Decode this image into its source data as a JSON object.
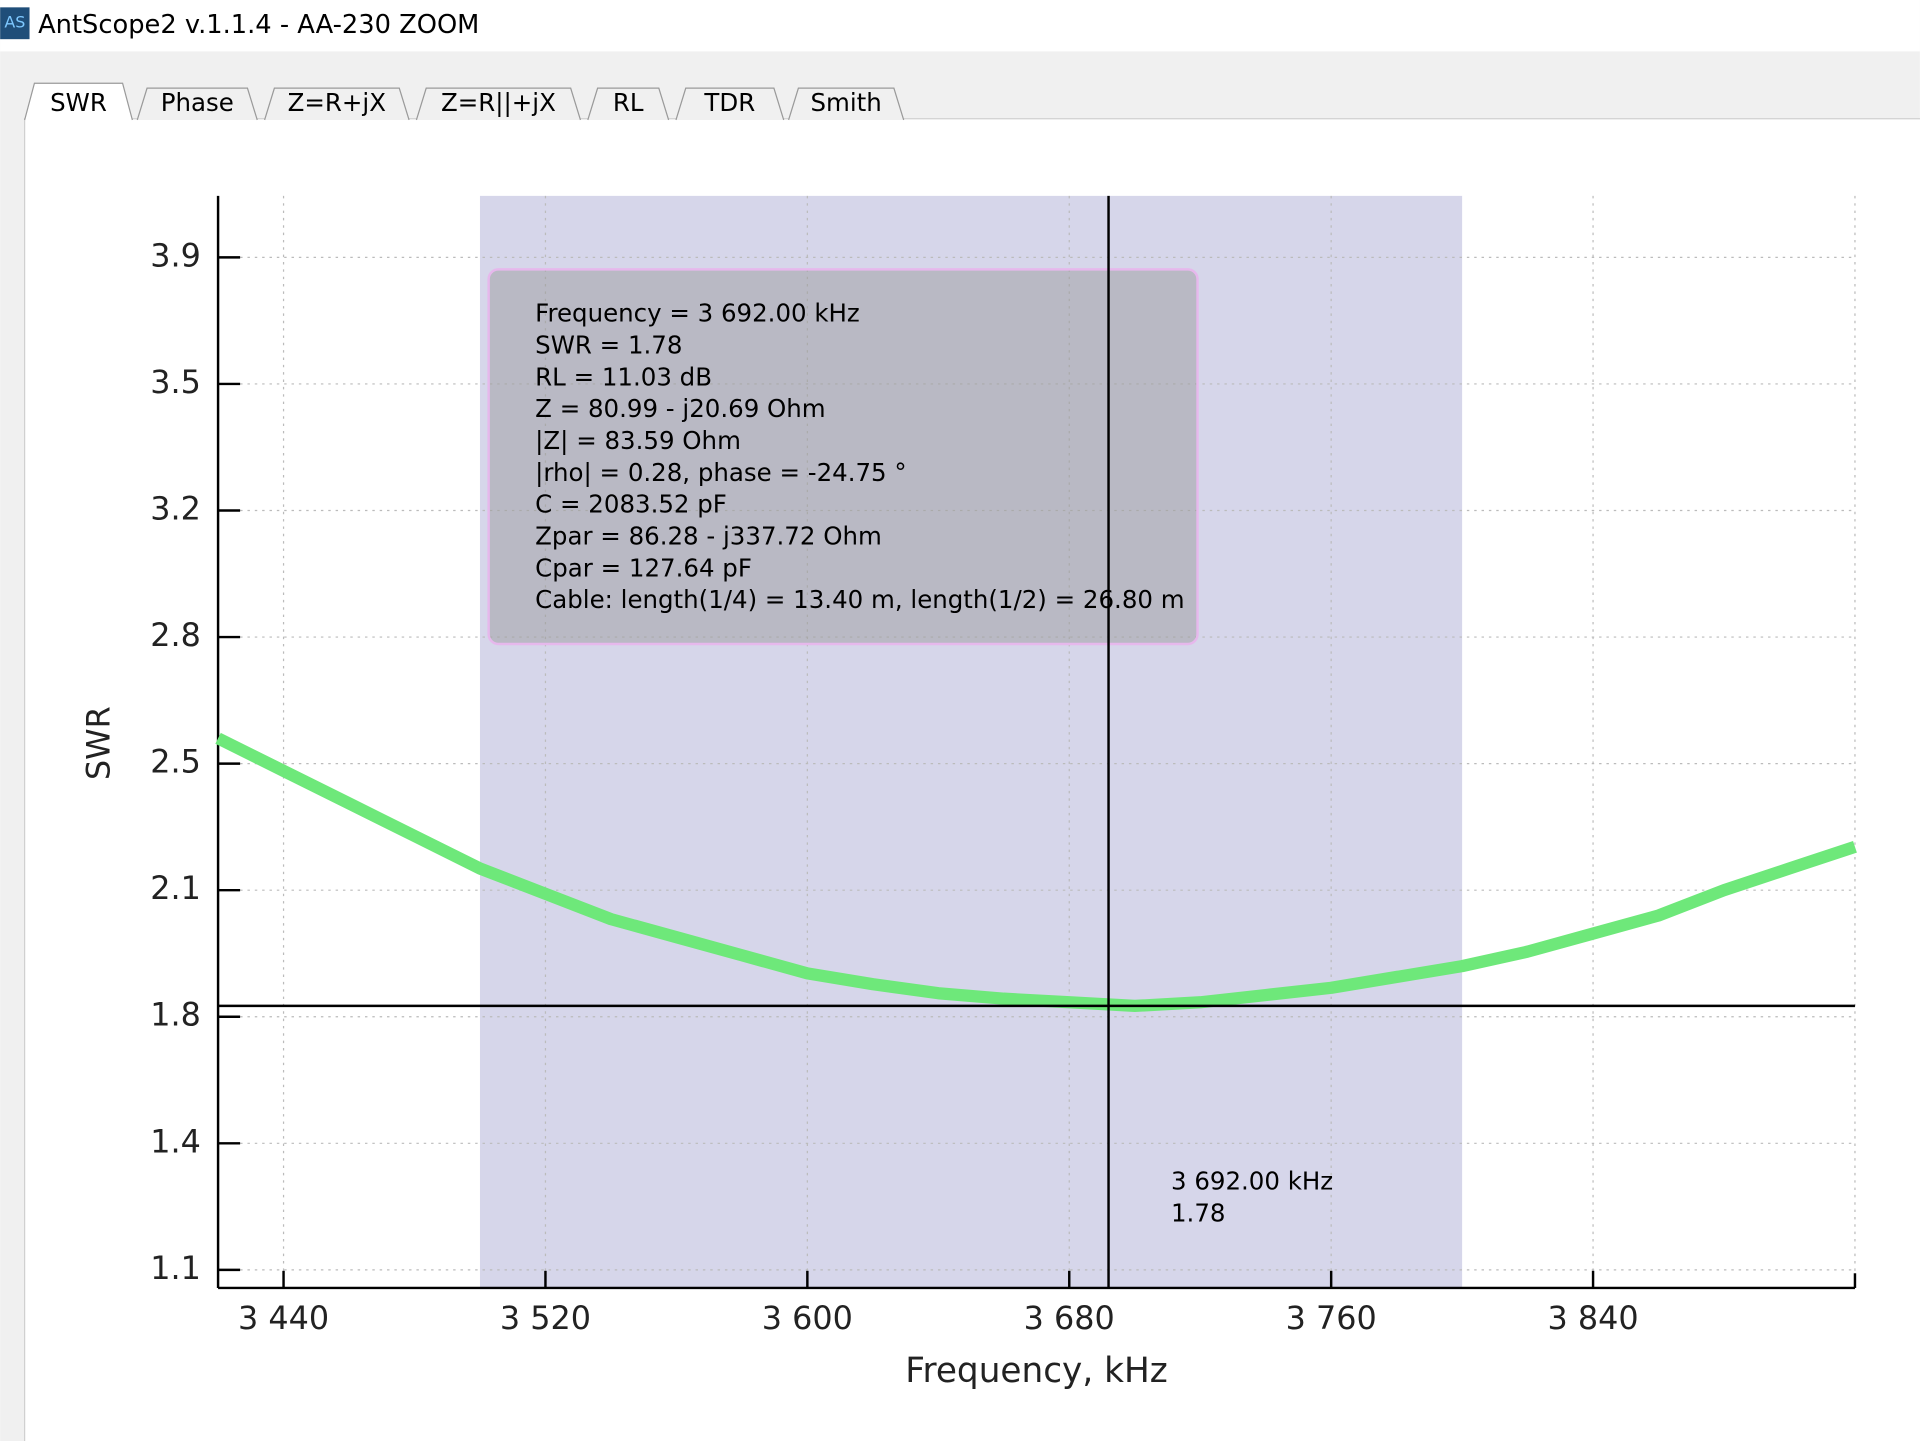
{
  "window": {
    "title": "AntScope2 v.1.1.4 - AA-230 ZOOM",
    "icon": "AS"
  },
  "tabs": [
    "SWR",
    "Phase",
    "Z=R+jX",
    "Z=R||+jX",
    "RL",
    "TDR",
    "Smith"
  ],
  "chart_data": {
    "type": "line",
    "x_label": "Frequency, kHz",
    "y_label": "SWR",
    "x": [
      3420,
      3440,
      3460,
      3480,
      3500,
      3520,
      3540,
      3560,
      3580,
      3600,
      3620,
      3640,
      3660,
      3680,
      3700,
      3720,
      3740,
      3760,
      3780,
      3800,
      3820,
      3840,
      3860,
      3880,
      3900,
      3920
    ],
    "values": [
      2.52,
      2.43,
      2.34,
      2.25,
      2.16,
      2.09,
      2.02,
      1.97,
      1.92,
      1.87,
      1.84,
      1.815,
      1.8,
      1.79,
      1.78,
      1.79,
      1.81,
      1.83,
      1.86,
      1.89,
      1.93,
      1.98,
      2.03,
      2.1,
      2.16,
      2.22
    ],
    "color": "#6ee87a",
    "xlim": [
      3420,
      3920
    ],
    "ylim": [
      1.0,
      4.02
    ],
    "xticks": [
      {
        "value": 3440,
        "label": "3 440"
      },
      {
        "value": 3520,
        "label": "3 520"
      },
      {
        "value": 3600,
        "label": "3 600"
      },
      {
        "value": 3680,
        "label": "3 680"
      },
      {
        "value": 3760,
        "label": "3 760"
      },
      {
        "value": 3840,
        "label": "3 840"
      }
    ],
    "yticks": [
      {
        "value": 1.05,
        "label": "1.1"
      },
      1.4,
      {
        "value": 1.75,
        "label": "1.8"
      },
      2.1,
      {
        "value": 2.45,
        "label": "2.5"
      },
      2.8,
      {
        "value": 3.15,
        "label": "3.2"
      },
      3.5,
      {
        "value": 3.85,
        "label": "3.9"
      }
    ],
    "grid": true,
    "highlight": [
      3500,
      3800
    ],
    "highlight_color": "#d6d6ea",
    "cursor": {
      "x": 3692,
      "y": 1.78,
      "labels": [
        "3 692.00 kHz",
        "1.78"
      ]
    },
    "info_box": [
      "Frequency = 3 692.00 kHz",
      "SWR = 1.78",
      "RL = 11.03 dB",
      "Z = 80.99 - j20.69 Ohm",
      "|Z| = 83.59 Ohm",
      "|rho| = 0.28, phase = -24.75 °",
      "C = 2083.52 pF",
      "Zpar = 86.28 - j337.72 Ohm",
      "Cpar = 127.64 pF",
      "Cable: length(1/4) = 13.40 m, length(1/2) = 26.80 m"
    ]
  }
}
